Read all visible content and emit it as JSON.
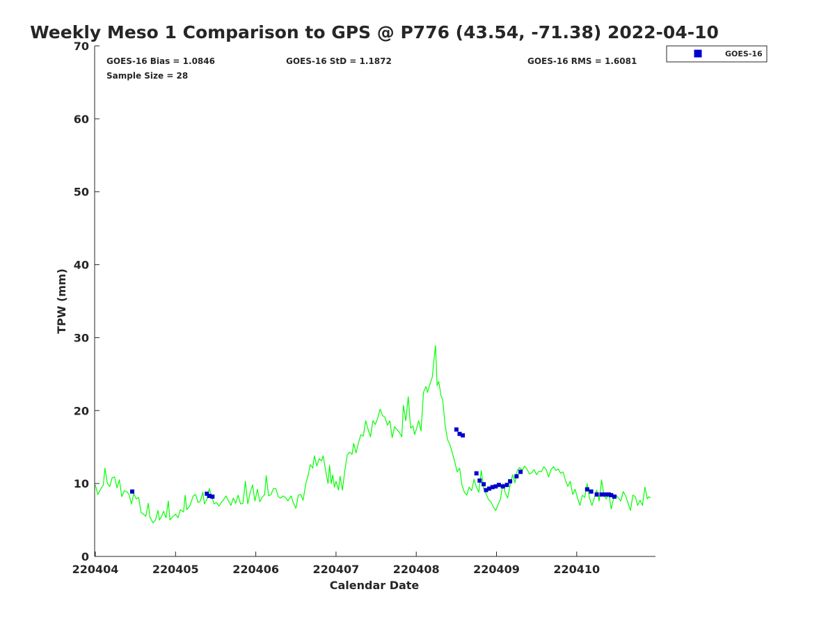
{
  "chart_data": {
    "type": "scatter",
    "title": "Weekly Meso 1 Comparison to GPS @ P776 (43.54, -71.38) 2022-04-10",
    "xlabel": "Calendar Date",
    "ylabel": "TPW (mm)",
    "ylim": [
      0,
      70
    ],
    "xlim": [
      -0.02,
      7.0
    ],
    "y_ticks": [
      "0",
      "10",
      "20",
      "30",
      "40",
      "50",
      "60",
      "70"
    ],
    "x_ticks": [
      {
        "pos": 0,
        "label": "220404"
      },
      {
        "pos": 1,
        "label": "220405"
      },
      {
        "pos": 2,
        "label": "220406"
      },
      {
        "pos": 3,
        "label": "220407"
      },
      {
        "pos": 4,
        "label": "220408"
      },
      {
        "pos": 5,
        "label": "220409"
      },
      {
        "pos": 6,
        "label": "220410"
      }
    ],
    "stats": {
      "bias": "GOES-16 Bias = 1.0846",
      "std": "GOES-16 StD = 1.1872",
      "rms": "GOES-16 RMS = 1.6081",
      "sample": "Sample Size = 28"
    },
    "legend": {
      "position": "top-right",
      "label": "GOES-16"
    },
    "colors": {
      "gps_line": "#00ff00",
      "goes_marker": "#0000cc",
      "axis": "#262626"
    },
    "gps_series": [
      [
        0.0,
        9.8
      ],
      [
        0.03,
        8.5
      ],
      [
        0.07,
        9.3
      ],
      [
        0.1,
        9.8
      ],
      [
        0.12,
        12.1
      ],
      [
        0.15,
        10.0
      ],
      [
        0.18,
        9.6
      ],
      [
        0.21,
        10.8
      ],
      [
        0.24,
        10.9
      ],
      [
        0.27,
        9.4
      ],
      [
        0.3,
        10.5
      ],
      [
        0.33,
        8.2
      ],
      [
        0.36,
        9.0
      ],
      [
        0.39,
        8.9
      ],
      [
        0.42,
        8.5
      ],
      [
        0.45,
        7.2
      ],
      [
        0.48,
        8.6
      ],
      [
        0.51,
        7.9
      ],
      [
        0.54,
        8.1
      ],
      [
        0.57,
        6.0
      ],
      [
        0.6,
        5.8
      ],
      [
        0.63,
        5.5
      ],
      [
        0.66,
        7.3
      ],
      [
        0.68,
        5.4
      ],
      [
        0.72,
        4.6
      ],
      [
        0.75,
        5.0
      ],
      [
        0.78,
        6.3
      ],
      [
        0.8,
        5.0
      ],
      [
        0.83,
        5.6
      ],
      [
        0.85,
        6.2
      ],
      [
        0.88,
        5.3
      ],
      [
        0.91,
        7.6
      ],
      [
        0.93,
        5.0
      ],
      [
        0.96,
        5.4
      ],
      [
        1.0,
        5.8
      ],
      [
        1.03,
        5.3
      ],
      [
        1.06,
        6.4
      ],
      [
        1.1,
        6.1
      ],
      [
        1.12,
        8.4
      ],
      [
        1.14,
        6.4
      ],
      [
        1.18,
        7.0
      ],
      [
        1.22,
        8.3
      ],
      [
        1.25,
        8.5
      ],
      [
        1.28,
        7.4
      ],
      [
        1.31,
        7.6
      ],
      [
        1.34,
        8.8
      ],
      [
        1.36,
        7.2
      ],
      [
        1.39,
        7.8
      ],
      [
        1.42,
        9.3
      ],
      [
        1.45,
        8.3
      ],
      [
        1.48,
        7.2
      ],
      [
        1.51,
        7.4
      ],
      [
        1.54,
        6.9
      ],
      [
        1.57,
        7.4
      ],
      [
        1.6,
        7.8
      ],
      [
        1.63,
        8.3
      ],
      [
        1.66,
        7.6
      ],
      [
        1.69,
        7.0
      ],
      [
        1.72,
        8.0
      ],
      [
        1.75,
        7.3
      ],
      [
        1.78,
        8.4
      ],
      [
        1.81,
        7.2
      ],
      [
        1.84,
        7.3
      ],
      [
        1.87,
        10.3
      ],
      [
        1.9,
        7.2
      ],
      [
        1.93,
        8.8
      ],
      [
        1.96,
        9.8
      ],
      [
        1.99,
        7.6
      ],
      [
        2.02,
        9.2
      ],
      [
        2.05,
        7.5
      ],
      [
        2.08,
        8.1
      ],
      [
        2.11,
        8.5
      ],
      [
        2.13,
        11.1
      ],
      [
        2.16,
        8.3
      ],
      [
        2.19,
        8.5
      ],
      [
        2.22,
        9.3
      ],
      [
        2.25,
        9.3
      ],
      [
        2.28,
        8.2
      ],
      [
        2.31,
        8.0
      ],
      [
        2.34,
        8.3
      ],
      [
        2.37,
        8.1
      ],
      [
        2.4,
        7.6
      ],
      [
        2.44,
        8.3
      ],
      [
        2.47,
        7.3
      ],
      [
        2.5,
        6.6
      ],
      [
        2.53,
        8.4
      ],
      [
        2.56,
        8.5
      ],
      [
        2.59,
        7.7
      ],
      [
        2.62,
        9.8
      ],
      [
        2.65,
        11.0
      ],
      [
        2.68,
        12.6
      ],
      [
        2.71,
        12.1
      ],
      [
        2.73,
        13.8
      ],
      [
        2.76,
        12.4
      ],
      [
        2.79,
        13.4
      ],
      [
        2.82,
        13.1
      ],
      [
        2.84,
        13.8
      ],
      [
        2.87,
        11.8
      ],
      [
        2.9,
        10.0
      ],
      [
        2.92,
        12.5
      ],
      [
        2.94,
        10.0
      ],
      [
        2.96,
        11.2
      ],
      [
        2.98,
        9.5
      ],
      [
        3.0,
        10.3
      ],
      [
        3.03,
        9.1
      ],
      [
        3.05,
        11.0
      ],
      [
        3.08,
        9.1
      ],
      [
        3.11,
        11.8
      ],
      [
        3.14,
        13.9
      ],
      [
        3.17,
        14.3
      ],
      [
        3.2,
        14.0
      ],
      [
        3.22,
        15.5
      ],
      [
        3.25,
        14.2
      ],
      [
        3.28,
        15.6
      ],
      [
        3.31,
        16.7
      ],
      [
        3.34,
        16.5
      ],
      [
        3.37,
        18.6
      ],
      [
        3.4,
        17.4
      ],
      [
        3.43,
        16.4
      ],
      [
        3.46,
        18.6
      ],
      [
        3.49,
        18.1
      ],
      [
        3.52,
        19.0
      ],
      [
        3.55,
        20.2
      ],
      [
        3.58,
        19.3
      ],
      [
        3.61,
        19.1
      ],
      [
        3.64,
        18.0
      ],
      [
        3.67,
        18.6
      ],
      [
        3.7,
        16.3
      ],
      [
        3.73,
        17.8
      ],
      [
        3.76,
        17.4
      ],
      [
        3.79,
        17.0
      ],
      [
        3.82,
        16.4
      ],
      [
        3.84,
        20.7
      ],
      [
        3.87,
        18.6
      ],
      [
        3.9,
        21.9
      ],
      [
        3.93,
        17.6
      ],
      [
        3.96,
        17.9
      ],
      [
        3.98,
        16.7
      ],
      [
        4.0,
        17.4
      ],
      [
        4.03,
        18.6
      ],
      [
        4.06,
        17.2
      ],
      [
        4.09,
        22.5
      ],
      [
        4.12,
        23.3
      ],
      [
        4.14,
        22.5
      ],
      [
        4.17,
        23.6
      ],
      [
        4.2,
        24.6
      ],
      [
        4.22,
        26.9
      ],
      [
        4.24,
        28.9
      ],
      [
        4.26,
        23.4
      ],
      [
        4.28,
        24.0
      ],
      [
        4.31,
        22.0
      ],
      [
        4.33,
        21.5
      ],
      [
        4.36,
        18.0
      ],
      [
        4.39,
        16.0
      ],
      [
        4.42,
        15.3
      ],
      [
        4.45,
        14.2
      ],
      [
        4.48,
        13.0
      ],
      [
        4.51,
        11.6
      ],
      [
        4.54,
        12.1
      ],
      [
        4.57,
        9.8
      ],
      [
        4.6,
        8.8
      ],
      [
        4.63,
        8.4
      ],
      [
        4.66,
        9.5
      ],
      [
        4.69,
        9.0
      ],
      [
        4.72,
        10.6
      ],
      [
        4.75,
        9.5
      ],
      [
        4.78,
        8.8
      ],
      [
        4.81,
        11.8
      ],
      [
        4.84,
        9.3
      ],
      [
        4.87,
        8.6
      ],
      [
        4.9,
        7.8
      ],
      [
        4.93,
        7.5
      ],
      [
        4.96,
        6.8
      ],
      [
        4.99,
        6.3
      ],
      [
        5.02,
        7.1
      ],
      [
        5.05,
        7.9
      ],
      [
        5.08,
        10.0
      ],
      [
        5.11,
        8.7
      ],
      [
        5.14,
        8.0
      ],
      [
        5.17,
        9.8
      ],
      [
        5.2,
        11.2
      ],
      [
        5.23,
        10.1
      ],
      [
        5.26,
        11.8
      ],
      [
        5.29,
        12.2
      ],
      [
        5.32,
        11.8
      ],
      [
        5.35,
        12.4
      ],
      [
        5.38,
        12.0
      ],
      [
        5.41,
        11.3
      ],
      [
        5.44,
        11.5
      ],
      [
        5.47,
        11.9
      ],
      [
        5.5,
        11.2
      ],
      [
        5.53,
        11.7
      ],
      [
        5.56,
        11.6
      ],
      [
        5.59,
        12.3
      ],
      [
        5.62,
        11.9
      ],
      [
        5.65,
        10.9
      ],
      [
        5.68,
        11.9
      ],
      [
        5.71,
        12.3
      ],
      [
        5.74,
        11.8
      ],
      [
        5.77,
        12.0
      ],
      [
        5.8,
        11.4
      ],
      [
        5.83,
        11.6
      ],
      [
        5.86,
        10.4
      ],
      [
        5.89,
        9.6
      ],
      [
        5.92,
        10.3
      ],
      [
        5.95,
        8.5
      ],
      [
        5.98,
        9.2
      ],
      [
        6.01,
        8.0
      ],
      [
        6.04,
        7.0
      ],
      [
        6.07,
        8.4
      ],
      [
        6.1,
        8.1
      ],
      [
        6.13,
        10.0
      ],
      [
        6.16,
        8.0
      ],
      [
        6.19,
        7.0
      ],
      [
        6.22,
        8.0
      ],
      [
        6.25,
        9.1
      ],
      [
        6.28,
        7.6
      ],
      [
        6.31,
        10.5
      ],
      [
        6.34,
        8.3
      ],
      [
        6.37,
        7.9
      ],
      [
        6.4,
        8.7
      ],
      [
        6.43,
        6.5
      ],
      [
        6.46,
        8.0
      ],
      [
        6.49,
        8.4
      ],
      [
        6.52,
        8.0
      ],
      [
        6.55,
        7.6
      ],
      [
        6.58,
        8.9
      ],
      [
        6.61,
        8.3
      ],
      [
        6.64,
        7.3
      ],
      [
        6.67,
        6.3
      ],
      [
        6.7,
        8.4
      ],
      [
        6.73,
        8.2
      ],
      [
        6.76,
        7.0
      ],
      [
        6.79,
        7.7
      ],
      [
        6.82,
        7.0
      ],
      [
        6.85,
        9.5
      ],
      [
        6.88,
        7.9
      ],
      [
        6.9,
        8.2
      ],
      [
        6.92,
        8.0
      ]
    ],
    "goes_points": [
      [
        0.46,
        8.9
      ],
      [
        1.39,
        8.6
      ],
      [
        1.42,
        8.3
      ],
      [
        1.46,
        8.2
      ],
      [
        4.5,
        17.4
      ],
      [
        4.54,
        16.8
      ],
      [
        4.58,
        16.6
      ],
      [
        4.75,
        11.4
      ],
      [
        4.79,
        10.4
      ],
      [
        4.84,
        9.9
      ],
      [
        4.87,
        9.1
      ],
      [
        4.91,
        9.3
      ],
      [
        4.95,
        9.5
      ],
      [
        4.99,
        9.6
      ],
      [
        5.03,
        9.8
      ],
      [
        5.08,
        9.6
      ],
      [
        5.13,
        9.8
      ],
      [
        5.17,
        10.3
      ],
      [
        5.25,
        11.0
      ],
      [
        5.3,
        11.6
      ],
      [
        6.13,
        9.2
      ],
      [
        6.18,
        8.9
      ],
      [
        6.25,
        8.5
      ],
      [
        6.31,
        8.5
      ],
      [
        6.36,
        8.5
      ],
      [
        6.4,
        8.5
      ],
      [
        6.43,
        8.4
      ],
      [
        6.47,
        8.2
      ]
    ]
  }
}
